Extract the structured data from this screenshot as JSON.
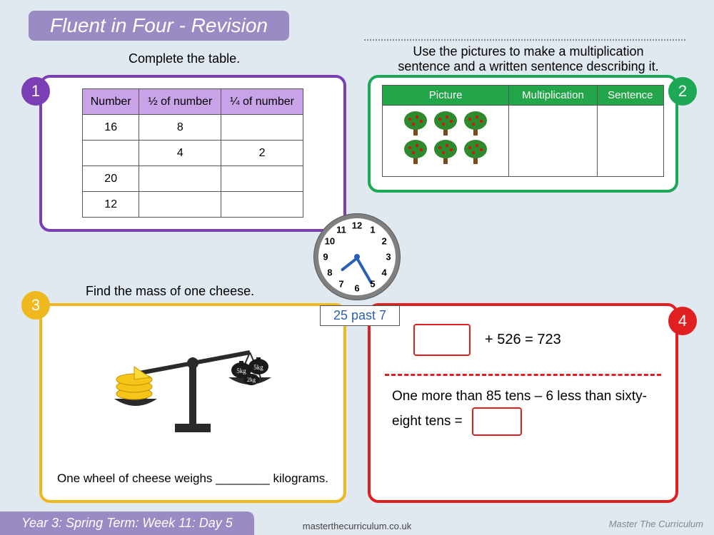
{
  "title": "Fluent in Four - Revision",
  "footer": {
    "left": "Year 3: Spring Term: Week 11: Day 5",
    "center": "masterthecurriculum.co.uk",
    "right": "Master The Curriculum"
  },
  "clock": {
    "label": "25 past 7",
    "numbers": [
      "12",
      "1",
      "2",
      "3",
      "4",
      "5",
      "6",
      "7",
      "8",
      "9",
      "10",
      "11"
    ]
  },
  "q1": {
    "instruction": "Complete the table.",
    "headers": [
      "Number",
      "½ of number",
      "¼ of number"
    ],
    "rows": [
      [
        "16",
        "8",
        ""
      ],
      [
        "",
        "4",
        "2"
      ],
      [
        "20",
        "",
        ""
      ],
      [
        "12",
        "",
        ""
      ]
    ],
    "header_bg": "#c9a3e8",
    "border_color": "#7b3fb5"
  },
  "q2": {
    "instruction": "Use the pictures to make a multiplication sentence and a written sentence describing it.",
    "headers": [
      "Picture",
      "Multiplication",
      "Sentence"
    ],
    "tree_rows": 2,
    "trees_per_row": 3,
    "border_color": "#1ca854"
  },
  "q3": {
    "instruction": "Find the mass of one cheese.",
    "weights": [
      "5kg",
      "5kg",
      "2kg"
    ],
    "sentence": "One wheel of cheese weighs ________ kilograms.",
    "border_color": "#f0b81f"
  },
  "q4": {
    "equation": "+ 526 = 723",
    "word_problem": "One more than 85 tens – 6 less than sixty-eight tens  =",
    "border_color": "#e02020"
  },
  "badges": {
    "1": "1",
    "2": "2",
    "3": "3",
    "4": "4"
  },
  "colors": {
    "page_bg": "#e0e8f0",
    "title_bg": "#9b8bc4",
    "clock_border": "#808080",
    "clock_hand": "#2a5fb5"
  }
}
